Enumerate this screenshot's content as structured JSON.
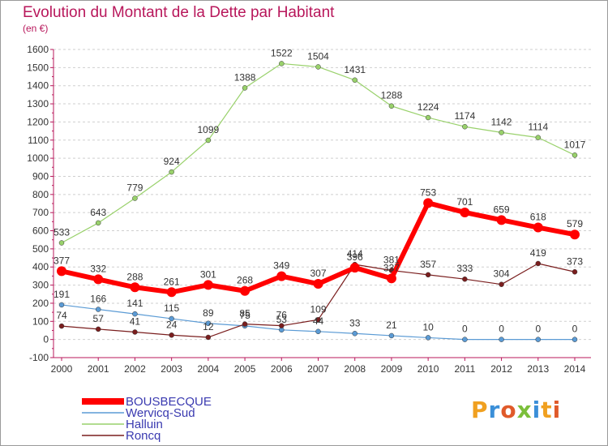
{
  "title": "Evolution du Montant de la Dette par Habitant",
  "subtitle": "(en €)",
  "logo": "Proxiti",
  "chart_data": {
    "type": "line",
    "title": "Evolution du Montant de la Dette par Habitant",
    "subtitle": "(en €)",
    "xlabel": "",
    "ylabel": "",
    "x": [
      "2000",
      "2001",
      "2002",
      "2003",
      "2004",
      "2005",
      "2006",
      "2007",
      "2008",
      "2009",
      "2010",
      "2011",
      "2012",
      "2013",
      "2014"
    ],
    "yticks": [
      "-100",
      "0",
      "100",
      "200",
      "300",
      "400",
      "500",
      "600",
      "700",
      "800",
      "900",
      "1000",
      "1100",
      "1200",
      "1300",
      "1400",
      "1500",
      "1600"
    ],
    "ylim": [
      -100,
      1600
    ],
    "grid": "horizontal-dashed",
    "legend_position": "bottom-left",
    "series": [
      {
        "name": "BOUSBECQUE",
        "color": "#ff0000",
        "values": [
          377,
          332,
          288,
          261,
          301,
          268,
          349,
          307,
          396,
          337,
          753,
          701,
          659,
          618,
          579
        ]
      },
      {
        "name": "Wervicq-Sud",
        "color": "#5b9bd5",
        "values": [
          191,
          166,
          141,
          115,
          89,
          75,
          53,
          44,
          33,
          21,
          10,
          0,
          0,
          0,
          0
        ]
      },
      {
        "name": "Halluin",
        "color": "#99d16b",
        "values": [
          533,
          643,
          779,
          924,
          1099,
          1388,
          1522,
          1504,
          1431,
          1288,
          1224,
          1174,
          1142,
          1114,
          1017
        ]
      },
      {
        "name": "Roncq",
        "color": "#7a1e1e",
        "values": [
          74,
          57,
          41,
          24,
          12,
          85,
          76,
          109,
          414,
          381,
          357,
          333,
          304,
          419,
          373
        ]
      }
    ],
    "data_labels": [
      [
        "377",
        "332",
        "288",
        "261",
        "301",
        "268",
        "349",
        "307",
        "396",
        "337",
        "753",
        "701",
        "659",
        "618",
        "579"
      ],
      [
        "191",
        "166",
        "141",
        "115",
        "89",
        "75",
        "53",
        "44",
        "33",
        "21",
        "10",
        "0",
        "0",
        "0",
        "0"
      ],
      [
        "533",
        "643",
        "779",
        "924",
        "1099",
        "1388",
        "1522",
        "1504",
        "1431",
        "1288",
        "1224",
        "1174",
        "1142",
        "1114",
        "1017"
      ],
      [
        "74",
        "57",
        "41",
        "24",
        "12",
        "85",
        "76",
        "109",
        "414",
        "381",
        "357",
        "333",
        "304",
        "419",
        "373"
      ]
    ]
  }
}
